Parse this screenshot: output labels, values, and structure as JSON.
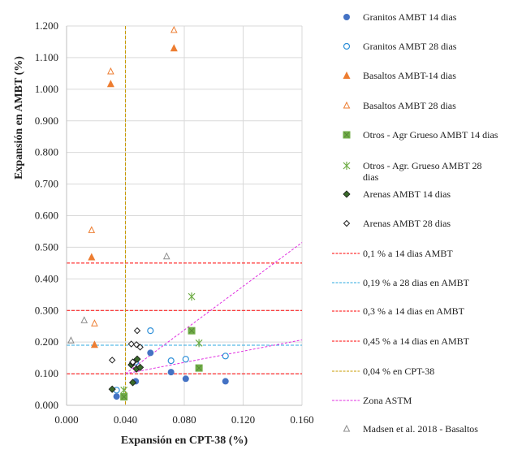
{
  "chart_data": {
    "type": "scatter",
    "title": "",
    "xlabel": "Expansión en CPT-38 (%)",
    "ylabel": "Expansión en AMBT (%)",
    "xlim": [
      0,
      0.16
    ],
    "ylim": [
      0,
      1.2
    ],
    "xticks": [
      "0.000",
      "0.040",
      "0.080",
      "0.120",
      "0.160"
    ],
    "yticks": [
      "0.000",
      "0.100",
      "0.200",
      "0.300",
      "0.400",
      "0.500",
      "0.600",
      "0.700",
      "0.800",
      "0.900",
      "1.000",
      "1.100",
      "1.200"
    ],
    "grid": true,
    "legend_position": "right",
    "series": [
      {
        "name": "Granitos AMBT 14 dias",
        "marker": "circle-filled",
        "color": "#4472C4",
        "points": [
          [
            0.034,
            0.028
          ],
          [
            0.047,
            0.076
          ],
          [
            0.057,
            0.166
          ],
          [
            0.071,
            0.105
          ],
          [
            0.081,
            0.084
          ],
          [
            0.108,
            0.076
          ]
        ]
      },
      {
        "name": "Granitos AMBT 28 dias",
        "marker": "circle-open",
        "color": "#2E8FD8",
        "points": [
          [
            0.034,
            0.048
          ],
          [
            0.047,
            0.137
          ],
          [
            0.057,
            0.236
          ],
          [
            0.071,
            0.141
          ],
          [
            0.081,
            0.146
          ],
          [
            0.108,
            0.156
          ]
        ]
      },
      {
        "name": "Basaltos AMBT-14 dias",
        "marker": "triangle-filled",
        "color": "#ED7D31",
        "points": [
          [
            0.017,
            0.469
          ],
          [
            0.019,
            0.192
          ],
          [
            0.03,
            1.017
          ],
          [
            0.073,
            1.13
          ]
        ]
      },
      {
        "name": "Basaltos AMBT 28 dias",
        "marker": "triangle-open",
        "color": "#ED7D31",
        "points": [
          [
            0.017,
            0.554
          ],
          [
            0.019,
            0.259
          ],
          [
            0.03,
            1.056
          ],
          [
            0.073,
            1.187
          ]
        ]
      },
      {
        "name": "Otros - Agr Grueso AMBT 14 dias",
        "marker": "square-filled",
        "color": "#70AD47",
        "points": [
          [
            0.039,
            0.027
          ],
          [
            0.085,
            0.236
          ],
          [
            0.09,
            0.118
          ]
        ]
      },
      {
        "name": "Otros - Agr. Grueso AMBT  28 dias",
        "marker": "asterisk",
        "color": "#70AD47",
        "points": [
          [
            0.039,
            0.048
          ],
          [
            0.085,
            0.344
          ],
          [
            0.09,
            0.197
          ]
        ]
      },
      {
        "name": "Arenas AMBT 14 dias",
        "marker": "diamond-filled",
        "color": "#3A6A2A",
        "points": [
          [
            0.031,
            0.051
          ],
          [
            0.044,
            0.128
          ],
          [
            0.045,
            0.136
          ],
          [
            0.048,
            0.146
          ],
          [
            0.0475,
            0.115
          ],
          [
            0.05,
            0.12
          ],
          [
            0.045,
            0.072
          ]
        ]
      },
      {
        "name": "Arenas AMBT 28 dias",
        "marker": "diamond-open",
        "color": "#222222",
        "points": [
          [
            0.031,
            0.143
          ],
          [
            0.048,
            0.236
          ],
          [
            0.044,
            0.194
          ],
          [
            0.0475,
            0.192
          ],
          [
            0.05,
            0.184
          ],
          [
            0.045,
            0.137
          ]
        ]
      },
      {
        "name": "0,1 % a 14 dias AMBT",
        "marker": "hline",
        "color": "#FF0000",
        "value": 0.1
      },
      {
        "name": "0,19 % a 28 dias en AMBT",
        "marker": "hline",
        "color": "#2EA8E0",
        "value": 0.19
      },
      {
        "name": "0,3 % a 14 dias en AMBT",
        "marker": "hline",
        "color": "#FF0000",
        "value": 0.3
      },
      {
        "name": "0,45 % a  14 dias en AMBT",
        "marker": "hline",
        "color": "#FF0000",
        "value": 0.45
      },
      {
        "name": "0,04 % en CPT-38",
        "marker": "vline",
        "color": "#C89B00",
        "value": 0.04
      },
      {
        "name": "Zona ASTM",
        "marker": "lines",
        "color": "#E030E0",
        "lines": [
          [
            [
              0.04,
              0.1
            ],
            [
              0.16,
              0.515
            ]
          ],
          [
            [
              0.04,
              0.1
            ],
            [
              0.16,
              0.207
            ]
          ]
        ]
      },
      {
        "name": "Madsen et al. 2018 - Basaltos",
        "marker": "triangle-open",
        "color": "#8C8C8C",
        "points": [
          [
            0.068,
            0.471
          ],
          [
            0.012,
            0.269
          ],
          [
            0.003,
            0.205
          ]
        ]
      }
    ]
  }
}
